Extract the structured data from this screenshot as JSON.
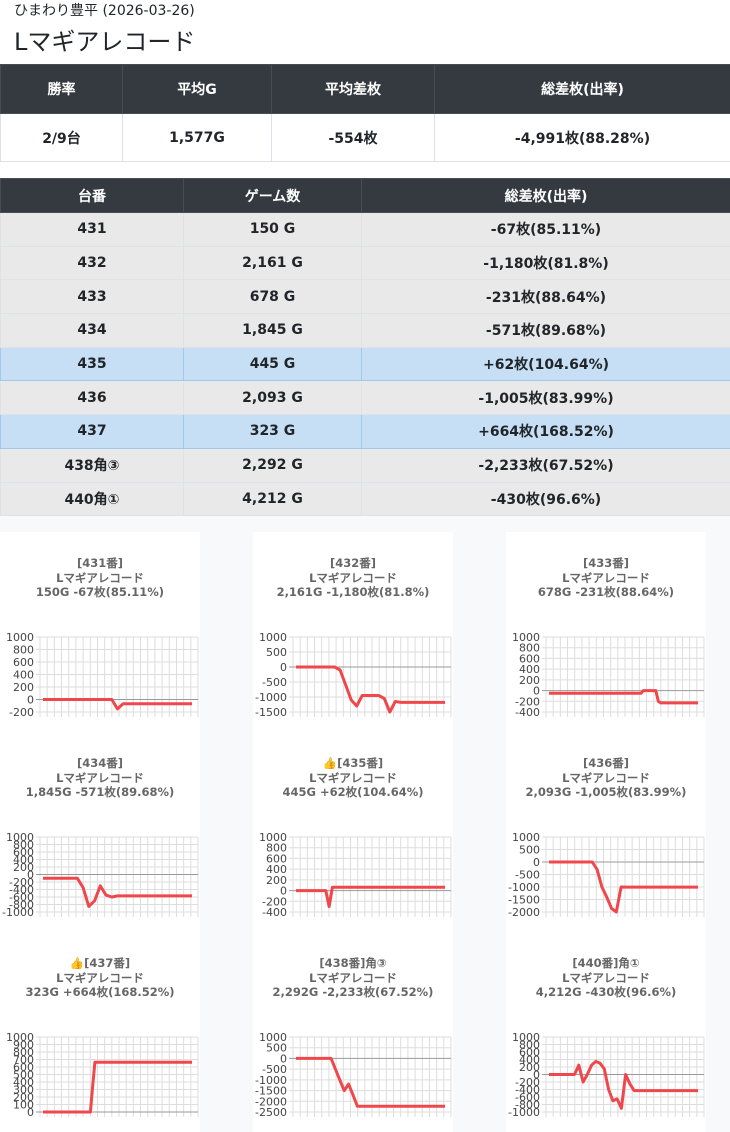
{
  "header": {
    "subtitle": "ひまわり豊平 (2026-03-26)",
    "title": "Lマギアレコード"
  },
  "summary": {
    "headers": [
      "勝率",
      "平均G",
      "平均差枚",
      "総差枚(出率)"
    ],
    "values": [
      "2/9台",
      "1,577G",
      "-554枚",
      "-4,991枚(88.28%)"
    ]
  },
  "machines": {
    "headers": [
      "台番",
      "ゲーム数",
      "総差枚(出率)"
    ],
    "rows": [
      {
        "no": "431",
        "games": "150 G",
        "diff": "-67枚(85.11%)",
        "plus": false
      },
      {
        "no": "432",
        "games": "2,161 G",
        "diff": "-1,180枚(81.8%)",
        "plus": false
      },
      {
        "no": "433",
        "games": "678 G",
        "diff": "-231枚(88.64%)",
        "plus": false
      },
      {
        "no": "434",
        "games": "1,845 G",
        "diff": "-571枚(89.68%)",
        "plus": false
      },
      {
        "no": "435",
        "games": "445 G",
        "diff": "+62枚(104.64%)",
        "plus": true
      },
      {
        "no": "436",
        "games": "2,093 G",
        "diff": "-1,005枚(83.99%)",
        "plus": false
      },
      {
        "no": "437",
        "games": "323 G",
        "diff": "+664枚(168.52%)",
        "plus": true
      },
      {
        "no": "438角③",
        "games": "2,292 G",
        "diff": "-2,233枚(67.52%)",
        "plus": false
      },
      {
        "no": "440角①",
        "games": "4,212 G",
        "diff": "-430枚(96.6%)",
        "plus": false
      }
    ]
  },
  "colors": {
    "line": "#f0474c",
    "grid": "#dddddd",
    "header_bg": "#343a40",
    "plus_row": "#c6dff5"
  },
  "chart_data": [
    {
      "type": "line",
      "title": "[431番]",
      "subtitle": "Lマギアレコード",
      "stats": "150G -67枚(85.11%)",
      "yticks": [
        1000,
        800,
        600,
        400,
        200,
        0,
        -200
      ],
      "ylim": [
        -200,
        1000
      ],
      "values": [
        0,
        0,
        0,
        0,
        0,
        0,
        0,
        0,
        0,
        0,
        0,
        0,
        0,
        -150,
        -67,
        -67,
        -67,
        -67,
        -67,
        -67,
        -67,
        -67,
        -67,
        -67,
        -67,
        -67,
        -67
      ]
    },
    {
      "type": "line",
      "title": "[432番]",
      "subtitle": "Lマギアレコード",
      "stats": "2,161G -1,180枚(81.8%)",
      "yticks": [
        1000,
        500,
        0,
        -500,
        -1000,
        -1500
      ],
      "ylim": [
        -1500,
        1000
      ],
      "values": [
        0,
        0,
        0,
        0,
        0,
        0,
        0,
        0,
        -100,
        -600,
        -1100,
        -1300,
        -950,
        -950,
        -950,
        -950,
        -1050,
        -1500,
        -1150,
        -1180,
        -1180,
        -1180,
        -1180,
        -1180,
        -1180,
        -1180,
        -1180,
        -1180
      ]
    },
    {
      "type": "line",
      "title": "[433番]",
      "subtitle": "Lマギアレコード",
      "stats": "678G -231枚(88.64%)",
      "yticks": [
        1000,
        800,
        600,
        400,
        200,
        0,
        -200,
        -400
      ],
      "ylim": [
        -400,
        1000
      ],
      "values": [
        -50,
        -50,
        -50,
        -50,
        -50,
        -50,
        -50,
        -50,
        -50,
        -50,
        -50,
        -50,
        -50,
        -50,
        -50,
        -50,
        -50,
        -50,
        -50,
        -50,
        -50,
        -50,
        -50,
        -50,
        -50,
        -50,
        -50,
        -50,
        -50,
        -50,
        -50,
        -50,
        -50,
        -50,
        -50,
        -50,
        -50,
        -50,
        0,
        0,
        0,
        0,
        0,
        0,
        -200,
        -231,
        -231,
        -231,
        -231,
        -231,
        -231,
        -231,
        -231,
        -231,
        -231,
        -231,
        -231,
        -231,
        -231,
        -231,
        -231
      ]
    },
    {
      "type": "line",
      "title": "[434番]",
      "subtitle": "Lマギアレコード",
      "stats": "1,845G -571枚(89.68%)",
      "yticks": [
        1000,
        800,
        600,
        400,
        200,
        0,
        -200,
        -400,
        -600,
        -800,
        -1000
      ],
      "ylim": [
        -1000,
        1000
      ],
      "values": [
        -100,
        -100,
        -100,
        -100,
        -100,
        -100,
        -100,
        -350,
        -850,
        -700,
        -300,
        -550,
        -600,
        -571,
        -571,
        -571,
        -571,
        -571,
        -571,
        -571,
        -571,
        -571,
        -571,
        -571,
        -571,
        -571,
        -571
      ]
    },
    {
      "type": "line",
      "title": "👍[435番]",
      "subtitle": "Lマギアレコード",
      "stats": "445G +62枚(104.64%)",
      "yticks": [
        1000,
        800,
        600,
        400,
        200,
        0,
        -200,
        -400
      ],
      "ylim": [
        -400,
        1000
      ],
      "values": [
        0,
        0,
        0,
        0,
        0,
        0,
        0,
        0,
        0,
        0,
        -300,
        62,
        62,
        62,
        62,
        62,
        62,
        62,
        62,
        62,
        62,
        62,
        62,
        62,
        62,
        62,
        62,
        62,
        62,
        62,
        62,
        62,
        62,
        62,
        62,
        62,
        62,
        62,
        62,
        62,
        62,
        62,
        62,
        62,
        62,
        62
      ]
    },
    {
      "type": "line",
      "title": "[436番]",
      "subtitle": "Lマギアレコード",
      "stats": "2,093G -1,005枚(83.99%)",
      "yticks": [
        1000,
        500,
        0,
        -500,
        -1000,
        -1500,
        -2000
      ],
      "ylim": [
        -2000,
        1000
      ],
      "values": [
        0,
        0,
        0,
        0,
        0,
        0,
        0,
        0,
        0,
        0,
        -300,
        -1000,
        -1400,
        -1850,
        -2000,
        -1000,
        -1005,
        -1005,
        -1005,
        -1005,
        -1005,
        -1005,
        -1005,
        -1005,
        -1005,
        -1005,
        -1005,
        -1005,
        -1005,
        -1005,
        -1005,
        -1005
      ]
    },
    {
      "type": "line",
      "title": "👍[437番]",
      "subtitle": "Lマギアレコード",
      "stats": "323G +664枚(168.52%)",
      "yticks": [
        1000,
        900,
        800,
        700,
        600,
        500,
        400,
        300,
        200,
        100,
        0
      ],
      "ylim": [
        0,
        1000
      ],
      "values": [
        0,
        0,
        0,
        0,
        0,
        0,
        0,
        0,
        0,
        0,
        0,
        0,
        0,
        0,
        0,
        0,
        0,
        0,
        0,
        0,
        0,
        0,
        350,
        664,
        664,
        664,
        664,
        664,
        664,
        664,
        664,
        664,
        664,
        664,
        664,
        664,
        664,
        664,
        664,
        664,
        664,
        664,
        664,
        664,
        664,
        664,
        664,
        664,
        664,
        664,
        664,
        664,
        664,
        664,
        664,
        664,
        664,
        664,
        664,
        664,
        664,
        664,
        664,
        664,
        664,
        664,
        664
      ]
    },
    {
      "type": "line",
      "title": "[438番]角③",
      "subtitle": "Lマギアレコード",
      "stats": "2,292G -2,233枚(67.52%)",
      "yticks": [
        1000,
        500,
        0,
        -500,
        -1000,
        -1500,
        -2000,
        -2500
      ],
      "ylim": [
        -2500,
        1000
      ],
      "values": [
        0,
        0,
        0,
        0,
        0,
        0,
        0,
        0,
        0,
        -500,
        -1000,
        -1500,
        -1200,
        -1700,
        -2233,
        -2233,
        -2233,
        -2233,
        -2233,
        -2233,
        -2233,
        -2233,
        -2233,
        -2233,
        -2233,
        -2233,
        -2233,
        -2233,
        -2233,
        -2233,
        -2233,
        -2233,
        -2233,
        -2233,
        -2233
      ]
    },
    {
      "type": "line",
      "title": "[440番]角①",
      "subtitle": "Lマギアレコード",
      "stats": "4,212G -430枚(96.6%)",
      "yticks": [
        1000,
        800,
        600,
        400,
        200,
        0,
        -200,
        -400,
        -600,
        -800,
        -1000
      ],
      "ylim": [
        -1000,
        1000
      ],
      "values": [
        0,
        0,
        0,
        0,
        0,
        0,
        0,
        250,
        -200,
        0,
        250,
        350,
        300,
        150,
        -400,
        -700,
        -650,
        -900,
        0,
        -250,
        -430,
        -430,
        -430,
        -430,
        -430,
        -430,
        -430,
        -430,
        -430,
        -430,
        -430,
        -430,
        -430,
        -430,
        -430,
        -430
      ]
    }
  ]
}
